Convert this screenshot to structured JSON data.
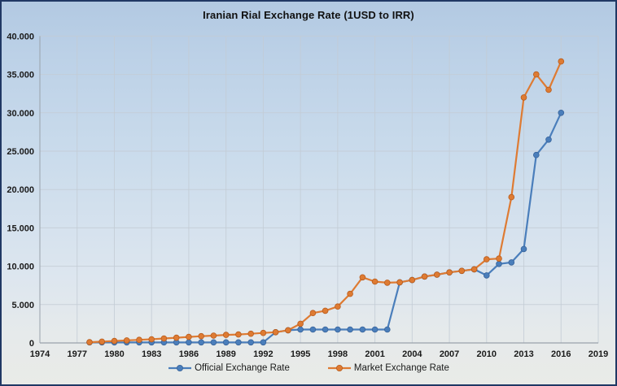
{
  "chart_data": {
    "type": "line",
    "title": "Iranian Rial Exchange Rate (1USD to IRR)",
    "x": [
      1978,
      1979,
      1980,
      1981,
      1982,
      1983,
      1984,
      1985,
      1986,
      1987,
      1988,
      1989,
      1990,
      1991,
      1992,
      1993,
      1994,
      1995,
      1996,
      1997,
      1998,
      1999,
      2000,
      2001,
      2002,
      2003,
      2004,
      2005,
      2006,
      2007,
      2008,
      2009,
      2010,
      2011,
      2012,
      2013,
      2014,
      2015,
      2016
    ],
    "series": [
      {
        "name": "Official Exchange Rate",
        "color": "#4a7ebb",
        "marker_edge": "#38639a",
        "values": [
          70,
          70,
          70,
          70,
          70,
          70,
          70,
          70,
          70,
          70,
          70,
          70,
          70,
          70,
          70,
          1400,
          1650,
          1750,
          1750,
          1750,
          1750,
          1750,
          1750,
          1750,
          1750,
          7900,
          8200,
          8650,
          8900,
          9200,
          9400,
          9600,
          8800,
          10300,
          10500,
          12250,
          24500,
          26500,
          30000
        ]
      },
      {
        "name": "Market Exchange Rate",
        "color": "#de7b33",
        "marker_edge": "#b95c1c",
        "values": [
          100,
          170,
          250,
          330,
          400,
          480,
          580,
          680,
          780,
          880,
          950,
          1050,
          1100,
          1200,
          1300,
          1400,
          1650,
          2500,
          3900,
          4200,
          4750,
          6400,
          8550,
          8000,
          7850,
          7900,
          8200,
          8650,
          8900,
          9200,
          9400,
          9600,
          10900,
          11000,
          19000,
          32000,
          35000,
          33000,
          36700
        ]
      }
    ],
    "xlabel": "",
    "ylabel": "",
    "xlim": [
      1974,
      2019
    ],
    "ylim": [
      0,
      40000
    ],
    "x_ticks": [
      1974,
      1977,
      1980,
      1983,
      1986,
      1989,
      1992,
      1995,
      1998,
      2001,
      2004,
      2007,
      2010,
      2013,
      2016,
      2019
    ],
    "x_tick_labels": [
      "1974",
      "1977",
      "1980",
      "1983",
      "1986",
      "1989",
      "1992",
      "1995",
      "1998",
      "2001",
      "2004",
      "2007",
      "2010",
      "2013",
      "2016",
      "2019"
    ],
    "y_ticks": [
      0,
      5000,
      10000,
      15000,
      20000,
      25000,
      30000,
      35000,
      40000
    ],
    "y_tick_labels": [
      "0",
      "5.000",
      "10.000",
      "15.000",
      "20.000",
      "25.000",
      "30.000",
      "35.000",
      "40.000"
    ],
    "grid": true,
    "legend_position": "bottom",
    "legend": [
      "Official Exchange Rate",
      "Market Exchange Rate"
    ]
  },
  "style": {
    "frame_border": "#203864",
    "grid_color": "#c3ccd5",
    "axis_color": "#99a2ab",
    "label_color": "#1a1a1a"
  }
}
